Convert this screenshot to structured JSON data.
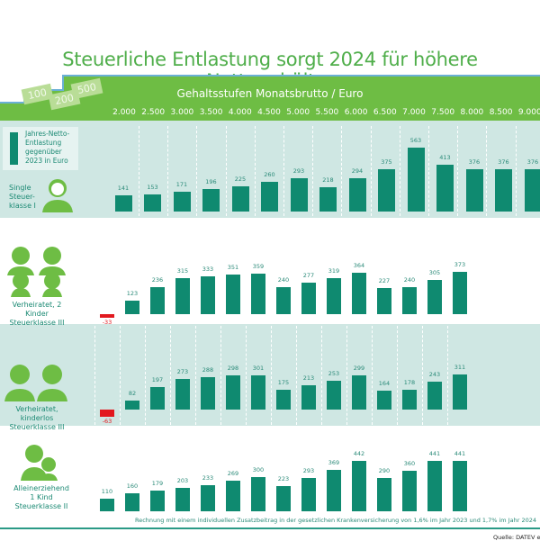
{
  "title": "Steuerliche Entlastung sorgt 2024 für höhere Nettogehälter",
  "banknotes": [
    "500",
    "200",
    "100"
  ],
  "chart_data": {
    "type": "bar",
    "title": "Steuerliche Entlastung sorgt 2024 für höhere Nettogehälter",
    "xlabel": "Gehaltsstufen Monatsbrutto / Euro",
    "ylabel": "",
    "categories": [
      "2.000",
      "2.500",
      "3.000",
      "3.500",
      "4.000",
      "4.500",
      "5.000",
      "5.500",
      "6.000",
      "6.500",
      "7.000",
      "7.500",
      "8.000",
      "8.500",
      "9.000"
    ],
    "legend": "Jahres-Netto-Entlastung gegenüber 2023 in Euro",
    "series": [
      {
        "name": "Single Steuer-klasse I",
        "label_lines": [
          "Single",
          "Steuer-",
          "klasse I"
        ],
        "values": [
          141,
          153,
          171,
          196,
          225,
          260,
          293,
          218,
          294,
          375,
          563,
          413,
          376,
          376,
          376
        ]
      },
      {
        "name": "Verheiratet, 2 Kinder Steuerklasse III",
        "label_lines": [
          "Verheiratet, 2 Kinder",
          "Steuerklasse III"
        ],
        "values": [
          -33,
          123,
          236,
          315,
          333,
          351,
          359,
          240,
          277,
          319,
          364,
          227,
          240,
          305,
          373
        ]
      },
      {
        "name": "Verheiratet, kinderlos Steuerklasse III",
        "label_lines": [
          "Verheiratet, kinderlos",
          "Steuerklasse III"
        ],
        "values": [
          -63,
          82,
          197,
          273,
          288,
          298,
          301,
          175,
          213,
          253,
          299,
          164,
          178,
          243,
          311
        ]
      },
      {
        "name": "Alleinerziehend 1 Kind Steuerklasse II",
        "label_lines": [
          "Alleinerziehend",
          "1 Kind",
          "Steuerklasse II"
        ],
        "values": [
          110,
          160,
          179,
          203,
          233,
          269,
          300,
          223,
          293,
          369,
          442,
          290,
          360,
          441,
          441
        ]
      }
    ],
    "colors": {
      "positive": "#0f8a70",
      "negative": "#e2191f",
      "header": "#6ebd44",
      "band": "#cfe7e3"
    },
    "grid": false
  },
  "legend_lines": [
    "Jahres-Netto-",
    "Entlastung",
    "gegenüber",
    "2023 in Euro"
  ],
  "footnote": "Rechnung mit einem individuellen Zusatzbeitrag in der gesetzlichen Krankenversicherung von 1,6% im Jahr 2023 und 1,7% im Jahr 2024",
  "source": "Quelle: DATEV eG"
}
